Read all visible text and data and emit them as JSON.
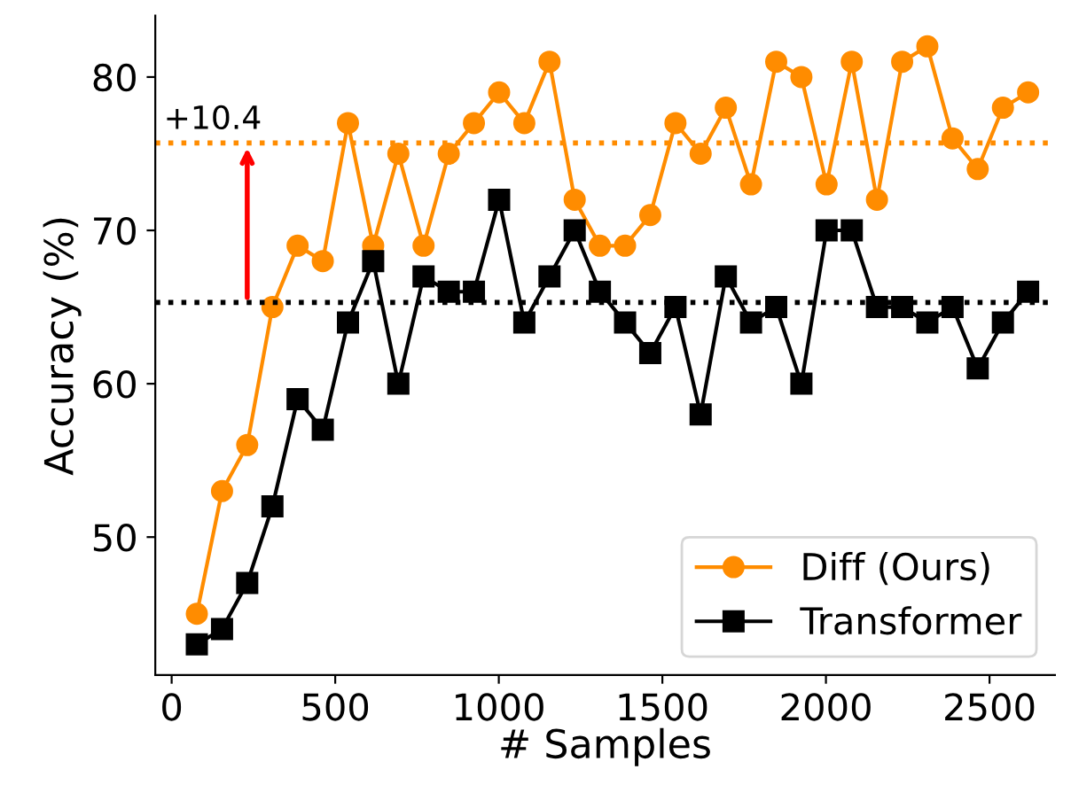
{
  "chart_data": {
    "type": "line",
    "xlabel": "# Samples",
    "ylabel": "Accuracy (%)",
    "x": [
      77,
      154,
      231,
      308,
      385,
      462,
      539,
      616,
      693,
      770,
      847,
      924,
      1001,
      1078,
      1155,
      1232,
      1309,
      1386,
      1463,
      1540,
      1617,
      1694,
      1771,
      1848,
      1925,
      2002,
      2079,
      2156,
      2233,
      2310,
      2387,
      2464,
      2541,
      2618
    ],
    "series": [
      {
        "name": "Diff (Ours)",
        "color": "#ff8c00",
        "marker": "circle",
        "values": [
          45,
          53,
          56,
          65,
          69,
          68,
          77,
          69,
          75,
          69,
          75,
          77,
          79,
          77,
          81,
          72,
          69,
          69,
          71,
          77,
          75,
          78,
          73,
          81,
          80,
          73,
          81,
          72,
          81,
          82,
          76,
          74,
          78,
          79
        ]
      },
      {
        "name": "Transformer",
        "color": "#000000",
        "marker": "square",
        "values": [
          43,
          44,
          47,
          52,
          59,
          57,
          64,
          68,
          60,
          67,
          66,
          66,
          72,
          64,
          67,
          70,
          66,
          64,
          62,
          65,
          58,
          67,
          64,
          65,
          60,
          70,
          70,
          65,
          65,
          64,
          65,
          61,
          64,
          66
        ]
      }
    ],
    "ref_lines": [
      {
        "axis": "y",
        "value": 65.3,
        "color": "#000000",
        "line_style": "dotted"
      },
      {
        "axis": "y",
        "value": 75.7,
        "color": "#ff8c00",
        "line_style": "dotted"
      }
    ],
    "annotations": [
      {
        "text": "+10.4",
        "x": 231,
        "y": 75.7
      }
    ],
    "xlim": [
      -50,
      2700
    ],
    "ylim": [
      41,
      84
    ],
    "xticks": [
      0,
      500,
      1000,
      1500,
      2000,
      2500
    ],
    "yticks": [
      50,
      60,
      70,
      80
    ],
    "grid": false,
    "legend": "bottom right",
    "line_style": "solid"
  }
}
